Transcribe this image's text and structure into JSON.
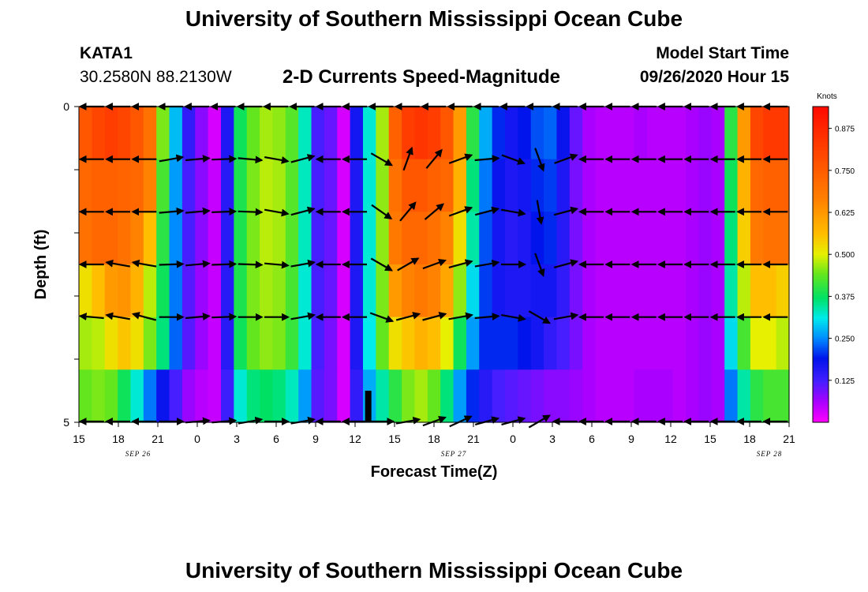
{
  "header": {
    "title": "University of Southern Mississippi Ocean Cube",
    "station": "KATA1",
    "coords": "30.2580N 88.2130W",
    "subtitle": "2-D Currents Speed-Magnitude",
    "start_label": "Model Start Time",
    "start_value": "09/26/2020 Hour 15"
  },
  "footer": {
    "title": "University of Southern Mississippi Ocean Cube"
  },
  "chart_data": {
    "type": "heatmap",
    "title": "2-D Currents Speed-Magnitude",
    "xlabel": "Forecast Time(Z)",
    "ylabel": "Depth (ft)",
    "ylim": [
      0,
      5
    ],
    "x_tick_labels": [
      "15",
      "18",
      "21",
      "0",
      "3",
      "6",
      "9",
      "12",
      "15",
      "18",
      "21",
      "0",
      "3",
      "6",
      "9",
      "12",
      "15",
      "18",
      "21"
    ],
    "y_tick_labels": [
      "0",
      "5"
    ],
    "date_labels": [
      {
        "text": "SEP 26",
        "hour": 4.5
      },
      {
        "text": "SEP 27",
        "hour": 28.5
      },
      {
        "text": "SEP 28",
        "hour": 52.5
      }
    ],
    "colorbar": {
      "label": "Knots",
      "ticks": [
        "0.875",
        "0.750",
        "0.625",
        "0.500",
        "0.375",
        "0.250",
        "0.125"
      ],
      "range": [
        0,
        0.94
      ]
    },
    "time_hours": [
      0,
      1,
      2,
      3,
      4,
      5,
      6,
      7,
      8,
      9,
      10,
      11,
      12,
      13,
      14,
      15,
      16,
      17,
      18,
      19,
      20,
      21,
      22,
      23,
      24,
      25,
      26,
      27,
      28,
      29,
      30,
      31,
      32,
      33,
      34,
      35,
      36,
      37,
      38,
      39,
      40,
      41,
      42,
      43,
      44,
      45,
      46,
      47,
      48,
      49,
      50,
      51,
      52,
      53,
      54
    ],
    "depth_layers": [
      0,
      1,
      2,
      3,
      4,
      5
    ],
    "speed_knots": [
      [
        0.76,
        0.8,
        0.82,
        0.8,
        0.76,
        0.7,
        0.45,
        0.28,
        0.14,
        0.08,
        0.03,
        0.16,
        0.38,
        0.44,
        0.47,
        0.46,
        0.43,
        0.33,
        0.12,
        0.1,
        0.03,
        0.17,
        0.32,
        0.47,
        0.74,
        0.82,
        0.84,
        0.82,
        0.76,
        0.62,
        0.4,
        0.27,
        0.2,
        0.17,
        0.19,
        0.22,
        0.23,
        0.18,
        0.1,
        0.06,
        0.05,
        0.05,
        0.05,
        0.06,
        0.05,
        0.05,
        0.05,
        0.06,
        0.07,
        0.06,
        0.4,
        0.62,
        0.8,
        0.83,
        0.83
      ],
      [
        0.72,
        0.74,
        0.74,
        0.73,
        0.72,
        0.66,
        0.42,
        0.26,
        0.12,
        0.08,
        0.04,
        0.15,
        0.39,
        0.45,
        0.48,
        0.47,
        0.43,
        0.33,
        0.12,
        0.1,
        0.03,
        0.16,
        0.32,
        0.46,
        0.7,
        0.76,
        0.76,
        0.74,
        0.72,
        0.58,
        0.36,
        0.24,
        0.18,
        0.16,
        0.17,
        0.2,
        0.21,
        0.16,
        0.09,
        0.06,
        0.05,
        0.05,
        0.05,
        0.05,
        0.05,
        0.05,
        0.05,
        0.06,
        0.07,
        0.06,
        0.38,
        0.58,
        0.72,
        0.74,
        0.74
      ],
      [
        0.7,
        0.72,
        0.72,
        0.7,
        0.66,
        0.56,
        0.4,
        0.25,
        0.12,
        0.08,
        0.04,
        0.15,
        0.39,
        0.45,
        0.48,
        0.47,
        0.43,
        0.33,
        0.12,
        0.1,
        0.03,
        0.16,
        0.32,
        0.46,
        0.68,
        0.72,
        0.72,
        0.7,
        0.66,
        0.52,
        0.34,
        0.22,
        0.17,
        0.15,
        0.16,
        0.19,
        0.2,
        0.15,
        0.09,
        0.06,
        0.05,
        0.05,
        0.05,
        0.05,
        0.05,
        0.05,
        0.05,
        0.06,
        0.07,
        0.06,
        0.36,
        0.54,
        0.68,
        0.7,
        0.7
      ],
      [
        0.52,
        0.56,
        0.62,
        0.63,
        0.58,
        0.48,
        0.38,
        0.24,
        0.11,
        0.07,
        0.04,
        0.15,
        0.39,
        0.45,
        0.47,
        0.46,
        0.42,
        0.32,
        0.12,
        0.1,
        0.03,
        0.16,
        0.32,
        0.45,
        0.62,
        0.66,
        0.68,
        0.66,
        0.6,
        0.46,
        0.3,
        0.21,
        0.17,
        0.16,
        0.16,
        0.17,
        0.17,
        0.14,
        0.09,
        0.06,
        0.05,
        0.05,
        0.05,
        0.05,
        0.05,
        0.05,
        0.05,
        0.06,
        0.07,
        0.06,
        0.34,
        0.48,
        0.56,
        0.56,
        0.54
      ],
      [
        0.47,
        0.48,
        0.52,
        0.55,
        0.52,
        0.45,
        0.36,
        0.23,
        0.11,
        0.07,
        0.04,
        0.15,
        0.38,
        0.44,
        0.46,
        0.45,
        0.41,
        0.32,
        0.12,
        0.09,
        0.03,
        0.16,
        0.31,
        0.44,
        0.52,
        0.55,
        0.58,
        0.56,
        0.5,
        0.38,
        0.26,
        0.2,
        0.2,
        0.2,
        0.19,
        0.17,
        0.14,
        0.12,
        0.09,
        0.06,
        0.05,
        0.05,
        0.05,
        0.05,
        0.05,
        0.05,
        0.05,
        0.06,
        0.07,
        0.06,
        0.3,
        0.42,
        0.5,
        0.5,
        0.48
      ],
      [
        0.44,
        0.45,
        0.44,
        0.38,
        0.32,
        0.24,
        0.18,
        0.12,
        0.07,
        0.05,
        0.04,
        0.13,
        0.32,
        0.36,
        0.37,
        0.36,
        0.33,
        0.26,
        0.11,
        0.09,
        0.03,
        0.14,
        0.27,
        0.34,
        0.4,
        0.45,
        0.47,
        0.44,
        0.36,
        0.26,
        0.2,
        0.15,
        0.12,
        0.11,
        0.1,
        0.09,
        0.08,
        0.08,
        0.07,
        0.06,
        0.05,
        0.05,
        0.05,
        0.06,
        0.06,
        0.06,
        0.05,
        0.06,
        0.07,
        0.06,
        0.24,
        0.34,
        0.4,
        0.42,
        0.42
      ]
    ],
    "vector_times": [
      1,
      3,
      5,
      7,
      9,
      11,
      13,
      15,
      17,
      19,
      21,
      23,
      25,
      27,
      29,
      31,
      33,
      35,
      37,
      39,
      41,
      43,
      45,
      47,
      49,
      51,
      53
    ],
    "vector_depth_layers": [
      0,
      1,
      2,
      3,
      4,
      5
    ],
    "vector_direction_deg": [
      [
        -90,
        -90,
        -90,
        -90,
        -90,
        -90,
        -90,
        -90,
        -90,
        -90,
        -90,
        -90,
        -90,
        -90,
        -90,
        -90,
        -90,
        -90,
        -90,
        -90,
        -90,
        -90,
        -90,
        -90,
        -90,
        -90,
        -90
      ],
      [
        -90,
        -90,
        -90,
        80,
        85,
        88,
        95,
        100,
        75,
        -90,
        -90,
        120,
        20,
        40,
        70,
        85,
        110,
        160,
        70,
        -90,
        -90,
        -90,
        -90,
        -90,
        -90,
        -90,
        -90
      ],
      [
        -90,
        -90,
        -90,
        85,
        85,
        88,
        92,
        100,
        75,
        -90,
        -90,
        125,
        40,
        50,
        70,
        75,
        100,
        170,
        75,
        -90,
        -90,
        -90,
        -90,
        -90,
        -90,
        -90,
        -90
      ],
      [
        -90,
        -80,
        -80,
        88,
        85,
        88,
        92,
        95,
        80,
        -90,
        -90,
        120,
        60,
        70,
        75,
        80,
        90,
        160,
        75,
        -90,
        -90,
        -90,
        -90,
        -90,
        -90,
        -90,
        -90
      ],
      [
        -85,
        -80,
        -75,
        90,
        85,
        88,
        90,
        90,
        80,
        -90,
        -90,
        110,
        75,
        75,
        80,
        85,
        100,
        120,
        80,
        -90,
        -90,
        -90,
        -90,
        -90,
        -90,
        -90,
        -90
      ],
      [
        -90,
        -90,
        -90,
        90,
        85,
        85,
        80,
        90,
        80,
        -90,
        -90,
        90,
        80,
        70,
        65,
        75,
        75,
        60,
        -90,
        -90,
        -90,
        -90,
        -90,
        -90,
        -90,
        -90,
        -90
      ]
    ]
  }
}
